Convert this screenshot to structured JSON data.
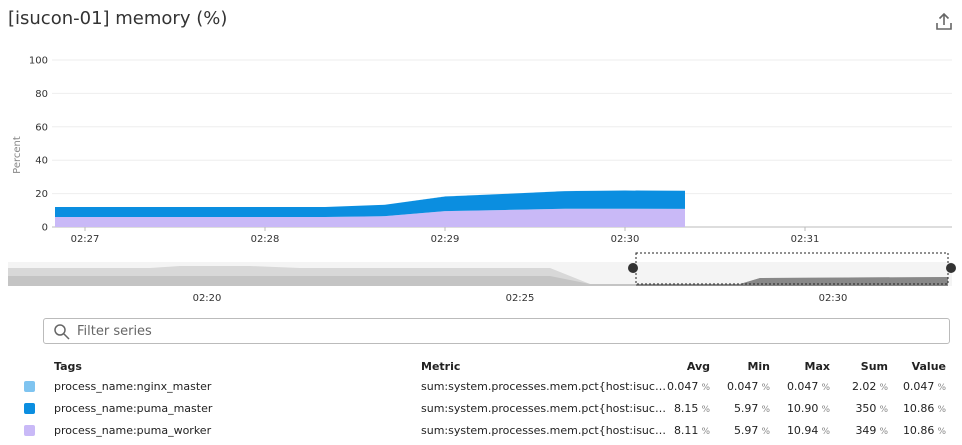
{
  "title": "[isucon-01] memory (%)",
  "chart_data": {
    "type": "area",
    "stacked": true,
    "y_label": "Percent",
    "x": [
      "02:26:50",
      "02:27:20",
      "02:27:50",
      "02:28:20",
      "02:28:40",
      "02:29:00",
      "02:29:20",
      "02:29:40",
      "02:30:00",
      "02:30:20"
    ],
    "xlim": [
      "02:26:49",
      "02:31:49"
    ],
    "xticks": [
      "02:27",
      "02:28",
      "02:29",
      "02:30",
      "02:31"
    ],
    "ylim": [
      0,
      100
    ],
    "yticks": [
      0,
      20,
      40,
      60,
      80,
      100
    ],
    "grid": true,
    "series": [
      {
        "name": "process_name:nginx_master",
        "color": "#7fc4f0",
        "values": [
          0.047,
          0.047,
          0.047,
          0.047,
          0.047,
          0.047,
          0.047,
          0.047,
          0.047,
          0.047
        ]
      },
      {
        "name": "process_name:puma_master",
        "color": "#0b8ee0",
        "values": [
          5.97,
          5.97,
          5.97,
          5.97,
          6.8,
          8.8,
          9.6,
          10.6,
          10.9,
          10.86
        ]
      },
      {
        "name": "process_name:puma_worker",
        "color": "#c9b9f7",
        "values": [
          5.97,
          5.97,
          5.97,
          5.97,
          6.5,
          9.5,
          10.2,
          10.9,
          10.94,
          10.86
        ]
      }
    ]
  },
  "overview": {
    "xticks": [
      "02:20",
      "02:25",
      "02:30"
    ]
  },
  "filter": {
    "placeholder": "Filter series"
  },
  "table": {
    "headers": [
      "Tags",
      "Metric",
      "Avg",
      "Min",
      "Max",
      "Sum",
      "Value"
    ],
    "unit": "%",
    "rows": [
      {
        "metric": "sum:system.processes.mem.pct{host:isuc…",
        "stats": [
          "0.047",
          "0.047",
          "0.047",
          "2.02",
          "0.047"
        ]
      },
      {
        "metric": "sum:system.processes.mem.pct{host:isuc…",
        "stats": [
          "8.15",
          "5.97",
          "10.90",
          "350",
          "10.86"
        ]
      },
      {
        "metric": "sum:system.processes.mem.pct{host:isuc…",
        "stats": [
          "8.11",
          "5.97",
          "10.94",
          "349",
          "10.86"
        ]
      }
    ]
  }
}
